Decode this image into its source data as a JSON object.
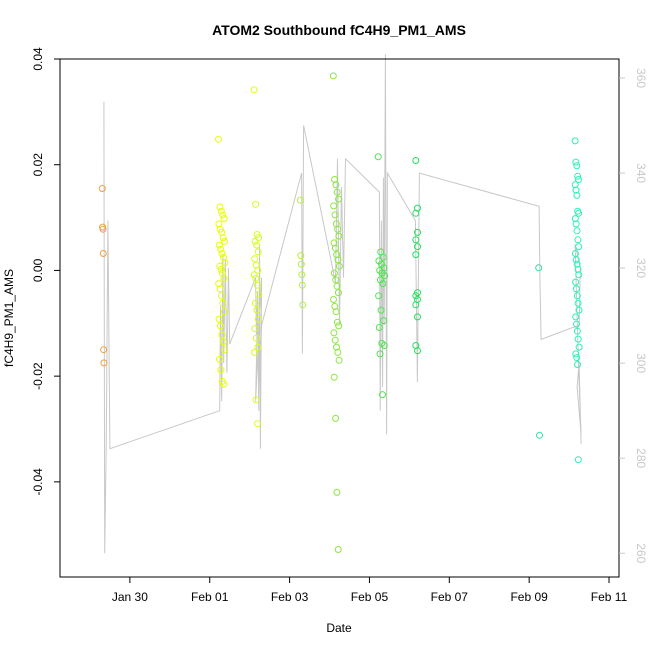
{
  "chart_data": {
    "type": "scatter",
    "title": "ATOM2 Southbound fC4H9_PM1_AMS",
    "xlabel": "Date",
    "ylabel": "fC4H9_PM1_AMS",
    "x_start": "2017-01-28T06:00",
    "x_end": "2017-02-11T06:00",
    "x_tick_labels": [
      "Jan 30",
      "Feb 01",
      "Feb 03",
      "Feb 05",
      "Feb 07",
      "Feb 09",
      "Feb 11"
    ],
    "x_tick_dates": [
      "2017-01-30",
      "2017-02-01",
      "2017-02-03",
      "2017-02-05",
      "2017-02-07",
      "2017-02-09",
      "2017-02-11"
    ],
    "ylim": [
      -0.058,
      0.04
    ],
    "y_ticks": [
      -0.04,
      -0.02,
      0.0,
      0.02,
      0.04
    ],
    "y_tick_labels": [
      "-0.04",
      "-0.02",
      "0.00",
      "0.02",
      "0.04"
    ],
    "y2lim": [
      255,
      364
    ],
    "y2_ticks": [
      260,
      280,
      300,
      320,
      340,
      360
    ],
    "y2_tick_labels": [
      "260",
      "280",
      "300",
      "320",
      "340",
      "360"
    ],
    "colors": {
      "axis": "#000000",
      "right_axis": "#c8c8c8",
      "line": "#c8c8c8"
    },
    "groups": [
      {
        "day": 1.08,
        "spread": 0.04,
        "color": "#f0a040",
        "values": [
          0.0155,
          0.0082,
          0.0078,
          0.0032,
          -0.015,
          -0.0175
        ]
      },
      {
        "day": 4.05,
        "spread": 0.16,
        "color": "#e6ff00",
        "values": [
          0.0248,
          0.012,
          0.0112,
          0.0105,
          0.0098,
          0.0088,
          0.0078,
          0.0072,
          0.0062,
          0.0055,
          0.0048,
          0.004,
          0.0032,
          0.0025,
          0.0015,
          0.0008,
          0.0002,
          -0.0005,
          -0.0015,
          -0.0025,
          -0.0035,
          -0.0048,
          -0.0062,
          -0.0078,
          -0.0092,
          -0.0105,
          -0.0122,
          -0.0135,
          -0.015,
          -0.0168,
          -0.0188,
          -0.021,
          -0.0215
        ]
      },
      {
        "day": 4.92,
        "spread": 0.12,
        "color": "#d4ff20",
        "values": [
          0.0342,
          0.0125,
          0.0068,
          0.0062,
          0.0055,
          0.0048,
          0.0035,
          0.0022,
          0.001,
          0.0,
          -0.0008,
          -0.0015,
          -0.0028,
          -0.0045,
          -0.0062,
          -0.0075,
          -0.0092,
          -0.011,
          -0.0128,
          -0.0145,
          -0.0155,
          -0.0245,
          -0.029
        ]
      },
      {
        "day": 6.05,
        "spread": 0.06,
        "color": "#b4f040",
        "values": [
          0.0133,
          0.0028,
          0.0012,
          -0.0008,
          -0.0028,
          -0.0065
        ]
      },
      {
        "day": 6.92,
        "spread": 0.15,
        "color": "#8ce640",
        "values": [
          0.0368,
          0.0172,
          0.0162,
          0.0148,
          0.0135,
          0.0122,
          0.0105,
          0.0088,
          0.0078,
          0.0065,
          0.0052,
          0.0042,
          0.003,
          0.002,
          0.0008,
          -0.0005,
          -0.0018,
          -0.003,
          -0.0042,
          -0.0055,
          -0.0068,
          -0.0078,
          -0.0098,
          -0.0105,
          -0.0118,
          -0.0132,
          -0.0145,
          -0.0155,
          -0.017,
          -0.0202,
          -0.028,
          -0.042,
          -0.0528
        ]
      },
      {
        "day": 8.05,
        "spread": 0.16,
        "color": "#50e650",
        "values": [
          0.0215,
          0.0035,
          0.0025,
          0.0018,
          0.0012,
          0.0005,
          0.0,
          -0.0005,
          -0.001,
          -0.0018,
          -0.0025,
          -0.0048,
          -0.0075,
          -0.0095,
          -0.0108,
          -0.0138,
          -0.0142,
          -0.0158,
          -0.0235
        ]
      },
      {
        "day": 8.95,
        "spread": 0.08,
        "color": "#20e060",
        "values": [
          0.0208,
          0.0118,
          0.0108,
          0.0072,
          0.0058,
          0.0045,
          0.003,
          -0.0042,
          -0.0048,
          -0.0055,
          -0.0065,
          -0.0088,
          -0.0142,
          -0.0152
        ]
      },
      {
        "day": 12.0,
        "spread": 0.02,
        "color": "#30e0a0",
        "values": [
          0.0005,
          -0.0312
        ]
      },
      {
        "day": 12.95,
        "spread": 0.1,
        "color": "#30f0b8",
        "values": [
          0.0245,
          0.0205,
          0.0198,
          0.0178,
          0.0172,
          0.0162,
          0.0152,
          0.0142,
          0.0112,
          0.0108,
          0.0098,
          0.0088,
          0.0075,
          0.0058,
          0.0045,
          0.0032,
          0.002,
          0.0012,
          0.0002,
          -0.0008,
          -0.0022,
          -0.0035,
          -0.0048,
          -0.0062,
          -0.0075,
          -0.0088,
          -0.0102,
          -0.0115,
          -0.013,
          -0.0145,
          -0.0158,
          -0.0165,
          -0.0178,
          -0.0358
        ]
      }
    ],
    "heading_line": [
      [
        1.1,
        355
      ],
      [
        1.12,
        260
      ],
      [
        1.16,
        284
      ],
      [
        1.2,
        330
      ],
      [
        1.25,
        282
      ],
      [
        4.0,
        290
      ],
      [
        4.02,
        312
      ],
      [
        4.05,
        292
      ],
      [
        4.08,
        323
      ],
      [
        4.1,
        300
      ],
      [
        4.14,
        322
      ],
      [
        4.18,
        298
      ],
      [
        4.22,
        320
      ],
      [
        4.25,
        304
      ],
      [
        4.9,
        318
      ],
      [
        4.92,
        306
      ],
      [
        4.95,
        315
      ],
      [
        4.98,
        290
      ],
      [
        5.0,
        325
      ],
      [
        5.02,
        282
      ],
      [
        5.05,
        318
      ],
      [
        4.9,
        292
      ],
      [
        4.95,
        312
      ],
      [
        5.0,
        296
      ],
      [
        5.05,
        308
      ],
      [
        6.05,
        340
      ],
      [
        6.07,
        302
      ],
      [
        6.1,
        350
      ],
      [
        6.9,
        317
      ],
      [
        6.95,
        343
      ],
      [
        7.0,
        308
      ],
      [
        7.05,
        337
      ],
      [
        7.1,
        318
      ],
      [
        7.15,
        343
      ],
      [
        8.0,
        336
      ],
      [
        8.02,
        290
      ],
      [
        8.05,
        330
      ],
      [
        8.08,
        295
      ],
      [
        8.1,
        339
      ],
      [
        8.12,
        308
      ],
      [
        8.15,
        365
      ],
      [
        8.18,
        285
      ],
      [
        8.2,
        340
      ],
      [
        8.9,
        330
      ],
      [
        8.95,
        296
      ],
      [
        9.0,
        340
      ],
      [
        12.0,
        333
      ],
      [
        12.02,
        318
      ],
      [
        12.05,
        305
      ],
      [
        13.0,
        308
      ],
      [
        13.03,
        320
      ],
      [
        12.9,
        325
      ],
      [
        12.95,
        310
      ],
      [
        13.0,
        296
      ],
      [
        13.05,
        285
      ],
      [
        12.95,
        295
      ],
      [
        13.0,
        300
      ],
      [
        13.05,
        283
      ]
    ]
  }
}
